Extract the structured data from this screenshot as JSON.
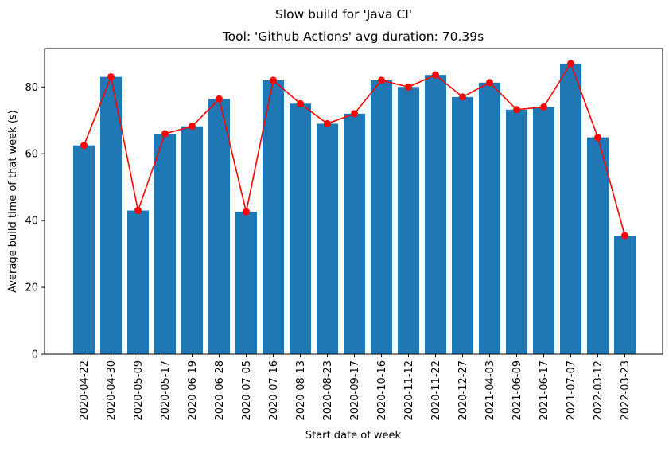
{
  "chart_data": {
    "type": "bar",
    "suptitle": "Slow build for 'Java CI'",
    "title": "Tool: 'Github Actions' avg duration: 70.39s",
    "xlabel": "Start date of week",
    "ylabel": "Average build time of that week (s)",
    "ylim": [
      0,
      91.5
    ],
    "yticks": [
      0,
      20,
      40,
      60,
      80
    ],
    "grid": false,
    "categories": [
      "2020-04-22",
      "2020-04-30",
      "2020-05-09",
      "2020-05-17",
      "2020-06-19",
      "2020-06-28",
      "2020-07-05",
      "2020-07-16",
      "2020-08-13",
      "2020-08-23",
      "2020-09-17",
      "2020-10-16",
      "2020-11-12",
      "2020-11-22",
      "2020-12-27",
      "2021-04-03",
      "2021-06-09",
      "2021-06-17",
      "2021-07-07",
      "2022-03-12",
      "2022-03-23"
    ],
    "values": [
      62.5,
      83.0,
      43.0,
      66.0,
      68.2,
      76.4,
      42.6,
      82.0,
      75.0,
      69.0,
      72.0,
      82.0,
      80.0,
      83.6,
      77.0,
      81.3,
      73.2,
      74.0,
      87.0,
      64.9,
      35.5
    ],
    "bar_color": "#1f77b4",
    "line_color": "#ff0000"
  }
}
